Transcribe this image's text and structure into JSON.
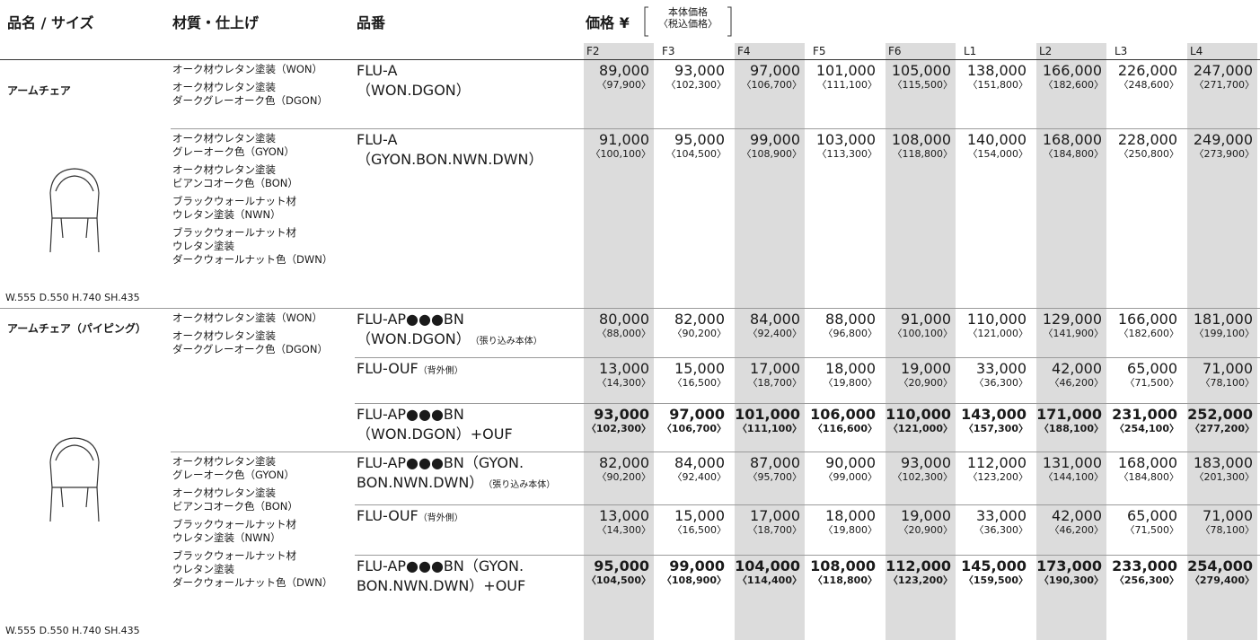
{
  "header": {
    "name_size": "品名 / サイズ",
    "material": "材質・仕上げ",
    "code": "品番",
    "price": "価格 ¥",
    "price_note": [
      "本体価格",
      "〈税込価格〉"
    ]
  },
  "grades": [
    "F2",
    "F3",
    "F4",
    "F5",
    "F6",
    "L1",
    "L2",
    "L3",
    "L4"
  ],
  "sections": [
    {
      "name": "アームチェア",
      "size": "W.555 D.550 H.740 SH.435",
      "groups": [
        {
          "materials": [
            "オーク材ウレタン塗装（WON）",
            "オーク材ウレタン塗装\nダークグレーオーク色（DGON）"
          ],
          "rows": [
            {
              "code": "FLU-A\n（WON.DGON）",
              "prices": [
                "89,000",
                "93,000",
                "97,000",
                "101,000",
                "105,000",
                "138,000",
                "166,000",
                "226,000",
                "247,000"
              ],
              "tax": [
                "〈97,900〉",
                "〈102,300〉",
                "〈106,700〉",
                "〈111,100〉",
                "〈115,500〉",
                "〈151,800〉",
                "〈182,600〉",
                "〈248,600〉",
                "〈271,700〉"
              ]
            }
          ]
        },
        {
          "materials": [
            "オーク材ウレタン塗装\nグレーオーク色（GYON）",
            "オーク材ウレタン塗装\nビアンコオーク色（BON）",
            "ブラックウォールナット材\nウレタン塗装（NWN）",
            "ブラックウォールナット材\nウレタン塗装\nダークウォールナット色（DWN）"
          ],
          "rows": [
            {
              "code": "FLU-A\n（GYON.BON.NWN.DWN）",
              "prices": [
                "91,000",
                "95,000",
                "99,000",
                "103,000",
                "108,000",
                "140,000",
                "168,000",
                "228,000",
                "249,000"
              ],
              "tax": [
                "〈100,100〉",
                "〈104,500〉",
                "〈108,900〉",
                "〈113,300〉",
                "〈118,800〉",
                "〈154,000〉",
                "〈184,800〉",
                "〈250,800〉",
                "〈273,900〉"
              ]
            }
          ]
        }
      ]
    },
    {
      "name": "アームチェア（パイピング）",
      "size": "W.555 D.550 H.740 SH.435",
      "groups": [
        {
          "materials": [
            "オーク材ウレタン塗装（WON）",
            "オーク材ウレタン塗装\nダークグレーオーク色（DGON）"
          ],
          "rows": [
            {
              "code": "FLU-AP●●●BN\n（WON.DGON）",
              "note": "（張り込み本体）",
              "prices": [
                "80,000",
                "82,000",
                "84,000",
                "88,000",
                "91,000",
                "110,000",
                "129,000",
                "166,000",
                "181,000"
              ],
              "tax": [
                "〈88,000〉",
                "〈90,200〉",
                "〈92,400〉",
                "〈96,800〉",
                "〈100,100〉",
                "〈121,000〉",
                "〈141,900〉",
                "〈182,600〉",
                "〈199,100〉"
              ]
            },
            {
              "code": "FLU-OUF",
              "note": "（背外側）",
              "prices": [
                "13,000",
                "15,000",
                "17,000",
                "18,000",
                "19,000",
                "33,000",
                "42,000",
                "65,000",
                "71,000"
              ],
              "tax": [
                "〈14,300〉",
                "〈16,500〉",
                "〈18,700〉",
                "〈19,800〉",
                "〈20,900〉",
                "〈36,300〉",
                "〈46,200〉",
                "〈71,500〉",
                "〈78,100〉"
              ]
            },
            {
              "code": "FLU-AP●●●BN\n（WON.DGON）+OUF",
              "bold": true,
              "prices": [
                "93,000",
                "97,000",
                "101,000",
                "106,000",
                "110,000",
                "143,000",
                "171,000",
                "231,000",
                "252,000"
              ],
              "tax": [
                "〈102,300〉",
                "〈106,700〉",
                "〈111,100〉",
                "〈116,600〉",
                "〈121,000〉",
                "〈157,300〉",
                "〈188,100〉",
                "〈254,100〉",
                "〈277,200〉"
              ]
            }
          ]
        },
        {
          "materials": [
            "オーク材ウレタン塗装\nグレーオーク色（GYON）",
            "オーク材ウレタン塗装\nビアンコオーク色（BON）",
            "ブラックウォールナット材\nウレタン塗装（NWN）",
            "ブラックウォールナット材\nウレタン塗装\nダークウォールナット色（DWN）"
          ],
          "rows": [
            {
              "code": "FLU-AP●●●BN（GYON.\nBON.NWN.DWN）",
              "note": "（張り込み本体）",
              "prices": [
                "82,000",
                "84,000",
                "87,000",
                "90,000",
                "93,000",
                "112,000",
                "131,000",
                "168,000",
                "183,000"
              ],
              "tax": [
                "〈90,200〉",
                "〈92,400〉",
                "〈95,700〉",
                "〈99,000〉",
                "〈102,300〉",
                "〈123,200〉",
                "〈144,100〉",
                "〈184,800〉",
                "〈201,300〉"
              ]
            },
            {
              "code": "FLU-OUF",
              "note": "（背外側）",
              "prices": [
                "13,000",
                "15,000",
                "17,000",
                "18,000",
                "19,000",
                "33,000",
                "42,000",
                "65,000",
                "71,000"
              ],
              "tax": [
                "〈14,300〉",
                "〈16,500〉",
                "〈18,700〉",
                "〈19,800〉",
                "〈20,900〉",
                "〈36,300〉",
                "〈46,200〉",
                "〈71,500〉",
                "〈78,100〉"
              ]
            },
            {
              "code": "FLU-AP●●●BN（GYON.\nBON.NWN.DWN）+OUF",
              "bold": true,
              "prices": [
                "95,000",
                "99,000",
                "104,000",
                "108,000",
                "112,000",
                "145,000",
                "173,000",
                "233,000",
                "254,000"
              ],
              "tax": [
                "〈104,500〉",
                "〈108,900〉",
                "〈114,400〉",
                "〈118,800〉",
                "〈123,200〉",
                "〈159,500〉",
                "〈190,300〉",
                "〈256,300〉",
                "〈279,400〉"
              ]
            }
          ]
        }
      ]
    }
  ]
}
